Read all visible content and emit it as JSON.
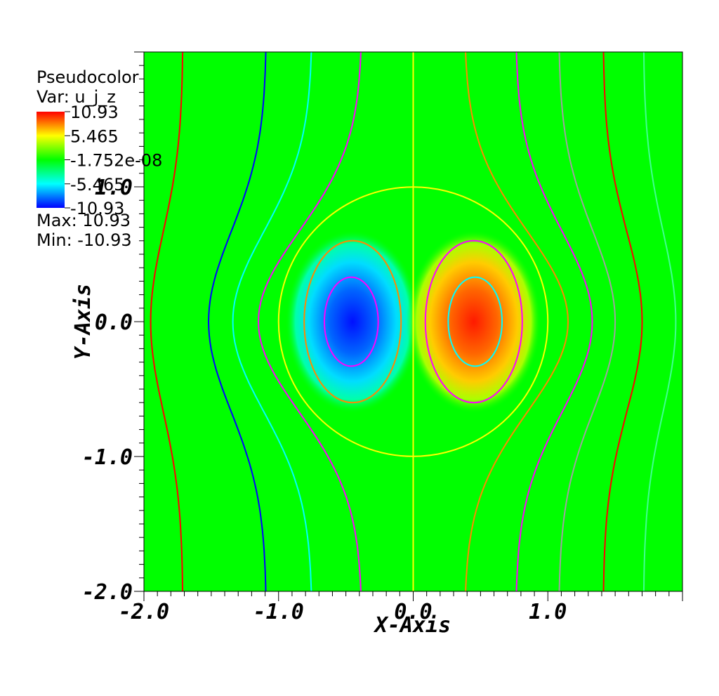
{
  "chart_data": {
    "type": "heatmap",
    "title": "",
    "xlabel": "X-Axis",
    "ylabel": "Y-Axis",
    "xlim": [
      -2.0,
      2.0
    ],
    "ylim": [
      -2.0,
      2.0
    ],
    "x_ticks": [
      -2.0,
      -1.0,
      0.0,
      1.0
    ],
    "y_ticks": [
      -2.0,
      -1.0,
      0.0,
      1.0
    ],
    "x_tick_labels": [
      "-2.0",
      "-1.0",
      "0.0",
      "1.0"
    ],
    "y_tick_labels": [
      "-2.0",
      "-1.0",
      "0.0",
      "1.0"
    ],
    "legend": {
      "plot_type": "Pseudocolor",
      "variable": "Var: u_j_z",
      "tick_labels": [
        "10.93",
        "5.465",
        "-1.752e-08",
        "-5.465",
        "-10.93"
      ],
      "max_label": "Max:  10.93",
      "min_label": "Min: -10.93",
      "max": 10.93,
      "min": -10.93
    },
    "colormap": [
      "#0000ff",
      "#00ffff",
      "#00ff00",
      "#ffff00",
      "#ff0000"
    ],
    "field": {
      "description_source": "dipole vortex inside circle radius 1 centered at origin",
      "blobs": [
        {
          "center": [
            -0.45,
            0.0
          ],
          "value": -10.93
        },
        {
          "center": [
            0.45,
            0.0
          ],
          "value": 10.93
        }
      ],
      "circle_radius": 1.0
    },
    "contour_colors": [
      "#ff0000",
      "#0000ff",
      "#00ffff",
      "#ff00ff",
      "#ffff00",
      "#ff8800",
      "#a0a0a0",
      "#40ff90"
    ]
  }
}
